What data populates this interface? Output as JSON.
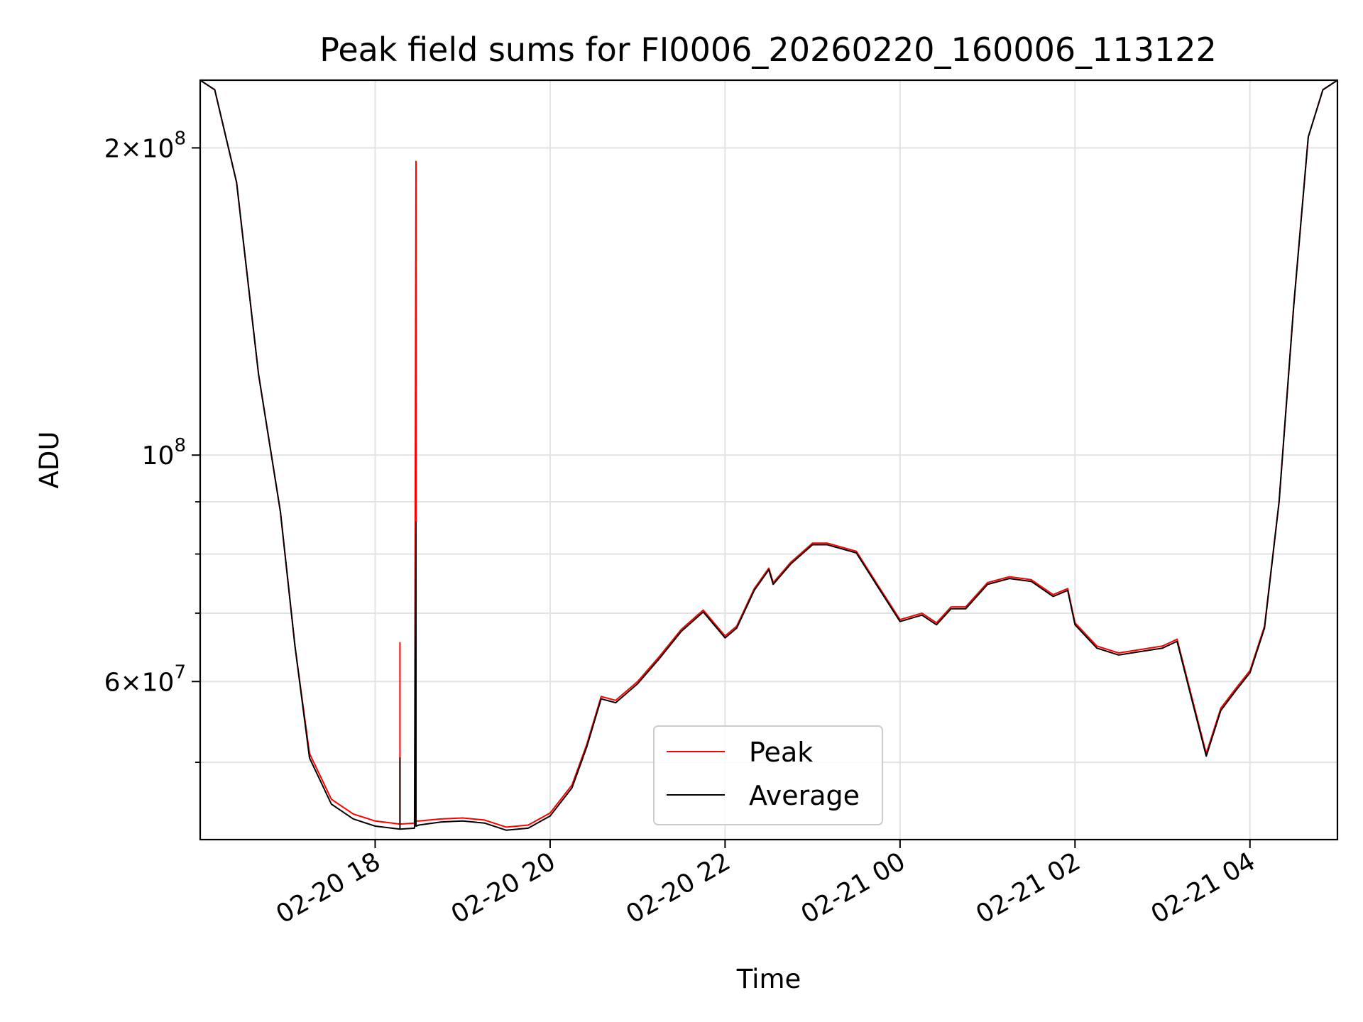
{
  "chart_data": {
    "type": "line",
    "title": "Peak field sums for FI0006_20260220_160006_113122",
    "xlabel": "Time",
    "ylabel": "ADU",
    "y_scale": "log",
    "ylim": [
      42000000,
      233000000
    ],
    "xlim": [
      "2026-02-20 16:00",
      "2026-02-21 05:00"
    ],
    "grid": true,
    "legend_position": "lower center",
    "x_ticks": [
      {
        "value": "2026-02-20 18:00",
        "label": "02-20 18"
      },
      {
        "value": "2026-02-20 20:00",
        "label": "02-20 20"
      },
      {
        "value": "2026-02-20 22:00",
        "label": "02-20 22"
      },
      {
        "value": "2026-02-21 00:00",
        "label": "02-21 00"
      },
      {
        "value": "2026-02-21 02:00",
        "label": "02-21 02"
      },
      {
        "value": "2026-02-21 04:00",
        "label": "02-21 04"
      }
    ],
    "y_major_ticks": [
      {
        "value": 60000000,
        "mantissa": "6",
        "exponent": "7"
      },
      {
        "value": 100000000,
        "mantissa": "",
        "exponent": "8"
      },
      {
        "value": 200000000,
        "mantissa": "2",
        "exponent": "8"
      }
    ],
    "y_minor_gridlines": [
      50000000,
      70000000,
      80000000,
      90000000
    ],
    "series": [
      {
        "name": "Peak",
        "color": "#ff0000",
        "x": [
          "2026-02-20 16:00",
          "2026-02-20 16:10",
          "2026-02-20 16:25",
          "2026-02-20 16:40",
          "2026-02-20 16:55",
          "2026-02-20 17:05",
          "2026-02-20 17:15",
          "2026-02-20 17:30",
          "2026-02-20 17:45",
          "2026-02-20 18:00",
          "2026-02-20 18:17",
          "2026-02-20 18:17",
          "2026-02-20 18:17",
          "2026-02-20 18:27",
          "2026-02-20 18:28",
          "2026-02-20 18:28",
          "2026-02-20 18:30",
          "2026-02-20 18:45",
          "2026-02-20 19:00",
          "2026-02-20 19:15",
          "2026-02-20 19:30",
          "2026-02-20 19:45",
          "2026-02-20 20:00",
          "2026-02-20 20:15",
          "2026-02-20 20:25",
          "2026-02-20 20:35",
          "2026-02-20 20:45",
          "2026-02-20 21:00",
          "2026-02-20 21:15",
          "2026-02-20 21:30",
          "2026-02-20 21:45",
          "2026-02-20 22:00",
          "2026-02-20 22:08",
          "2026-02-20 22:20",
          "2026-02-20 22:30",
          "2026-02-20 22:33",
          "2026-02-20 22:45",
          "2026-02-20 23:00",
          "2026-02-20 23:10",
          "2026-02-20 23:30",
          "2026-02-20 23:45",
          "2026-02-21 00:00",
          "2026-02-21 00:15",
          "2026-02-21 00:25",
          "2026-02-21 00:35",
          "2026-02-21 00:45",
          "2026-02-21 01:00",
          "2026-02-21 01:15",
          "2026-02-21 01:30",
          "2026-02-21 01:45",
          "2026-02-21 01:55",
          "2026-02-21 02:00",
          "2026-02-21 02:15",
          "2026-02-21 02:30",
          "2026-02-21 02:45",
          "2026-02-21 03:00",
          "2026-02-21 03:10",
          "2026-02-21 03:20",
          "2026-02-21 03:30",
          "2026-02-21 03:40",
          "2026-02-21 03:50",
          "2026-02-21 04:00",
          "2026-02-21 04:10",
          "2026-02-21 04:20",
          "2026-02-21 04:30",
          "2026-02-21 04:40",
          "2026-02-21 04:50",
          "2026-02-21 05:00"
        ],
        "y": [
          233000000,
          228000000,
          185000000,
          120000000,
          88000000,
          65000000,
          51000000,
          46000000,
          44500000,
          43800000,
          43500000,
          65500000,
          43500000,
          43600000,
          194000000,
          43800000,
          43800000,
          44000000,
          44100000,
          43900000,
          43200000,
          43400000,
          44600000,
          47500000,
          52000000,
          58000000,
          57500000,
          60000000,
          63500000,
          67500000,
          70500000,
          66500000,
          68000000,
          74000000,
          77500000,
          75000000,
          78500000,
          82000000,
          82000000,
          80500000,
          74500000,
          69000000,
          70000000,
          68500000,
          71000000,
          71000000,
          75000000,
          76000000,
          75500000,
          73000000,
          74000000,
          68500000,
          65000000,
          64000000,
          64500000,
          65000000,
          66000000,
          58000000,
          51000000,
          56500000,
          59000000,
          61500000,
          68000000,
          90000000,
          140000000,
          205000000,
          228000000,
          233000000
        ]
      },
      {
        "name": "Average",
        "color": "#000000",
        "x": [
          "2026-02-20 16:00",
          "2026-02-20 16:10",
          "2026-02-20 16:25",
          "2026-02-20 16:40",
          "2026-02-20 16:55",
          "2026-02-20 17:05",
          "2026-02-20 17:15",
          "2026-02-20 17:30",
          "2026-02-20 17:45",
          "2026-02-20 18:00",
          "2026-02-20 18:17",
          "2026-02-20 18:17",
          "2026-02-20 18:17",
          "2026-02-20 18:27",
          "2026-02-20 18:28",
          "2026-02-20 18:28",
          "2026-02-20 18:30",
          "2026-02-20 18:45",
          "2026-02-20 19:00",
          "2026-02-20 19:15",
          "2026-02-20 19:30",
          "2026-02-20 19:45",
          "2026-02-20 20:00",
          "2026-02-20 20:15",
          "2026-02-20 20:25",
          "2026-02-20 20:35",
          "2026-02-20 20:45",
          "2026-02-20 21:00",
          "2026-02-20 21:15",
          "2026-02-20 21:30",
          "2026-02-20 21:45",
          "2026-02-20 22:00",
          "2026-02-20 22:08",
          "2026-02-20 22:20",
          "2026-02-20 22:30",
          "2026-02-20 22:33",
          "2026-02-20 22:45",
          "2026-02-20 23:00",
          "2026-02-20 23:10",
          "2026-02-20 23:30",
          "2026-02-20 23:45",
          "2026-02-21 00:00",
          "2026-02-21 00:15",
          "2026-02-21 00:25",
          "2026-02-21 00:35",
          "2026-02-21 00:45",
          "2026-02-21 01:00",
          "2026-02-21 01:15",
          "2026-02-21 01:30",
          "2026-02-21 01:45",
          "2026-02-21 01:55",
          "2026-02-21 02:00",
          "2026-02-21 02:15",
          "2026-02-21 02:30",
          "2026-02-21 02:45",
          "2026-02-21 03:00",
          "2026-02-21 03:10",
          "2026-02-21 03:20",
          "2026-02-21 03:30",
          "2026-02-21 03:40",
          "2026-02-21 03:50",
          "2026-02-21 04:00",
          "2026-02-21 04:10",
          "2026-02-21 04:20",
          "2026-02-21 04:30",
          "2026-02-21 04:40",
          "2026-02-21 04:50",
          "2026-02-21 05:00"
        ],
        "y": [
          233000000,
          228000000,
          185000000,
          120000000,
          88000000,
          65000000,
          50500000,
          45500000,
          44000000,
          43300000,
          43000000,
          50500000,
          43000000,
          43100000,
          86000000,
          43300000,
          43400000,
          43700000,
          43800000,
          43600000,
          42900000,
          43100000,
          44300000,
          47200000,
          51700000,
          57700000,
          57200000,
          59700000,
          63200000,
          67200000,
          70200000,
          66200000,
          67700000,
          73700000,
          77200000,
          74700000,
          78200000,
          81700000,
          81700000,
          80200000,
          74200000,
          68700000,
          69700000,
          68200000,
          70700000,
          70700000,
          74700000,
          75700000,
          75200000,
          72700000,
          73700000,
          68200000,
          64700000,
          63700000,
          64200000,
          64700000,
          65700000,
          57700000,
          50700000,
          56200000,
          58700000,
          61200000,
          67700000,
          90000000,
          140000000,
          205000000,
          228000000,
          233000000
        ]
      }
    ]
  }
}
